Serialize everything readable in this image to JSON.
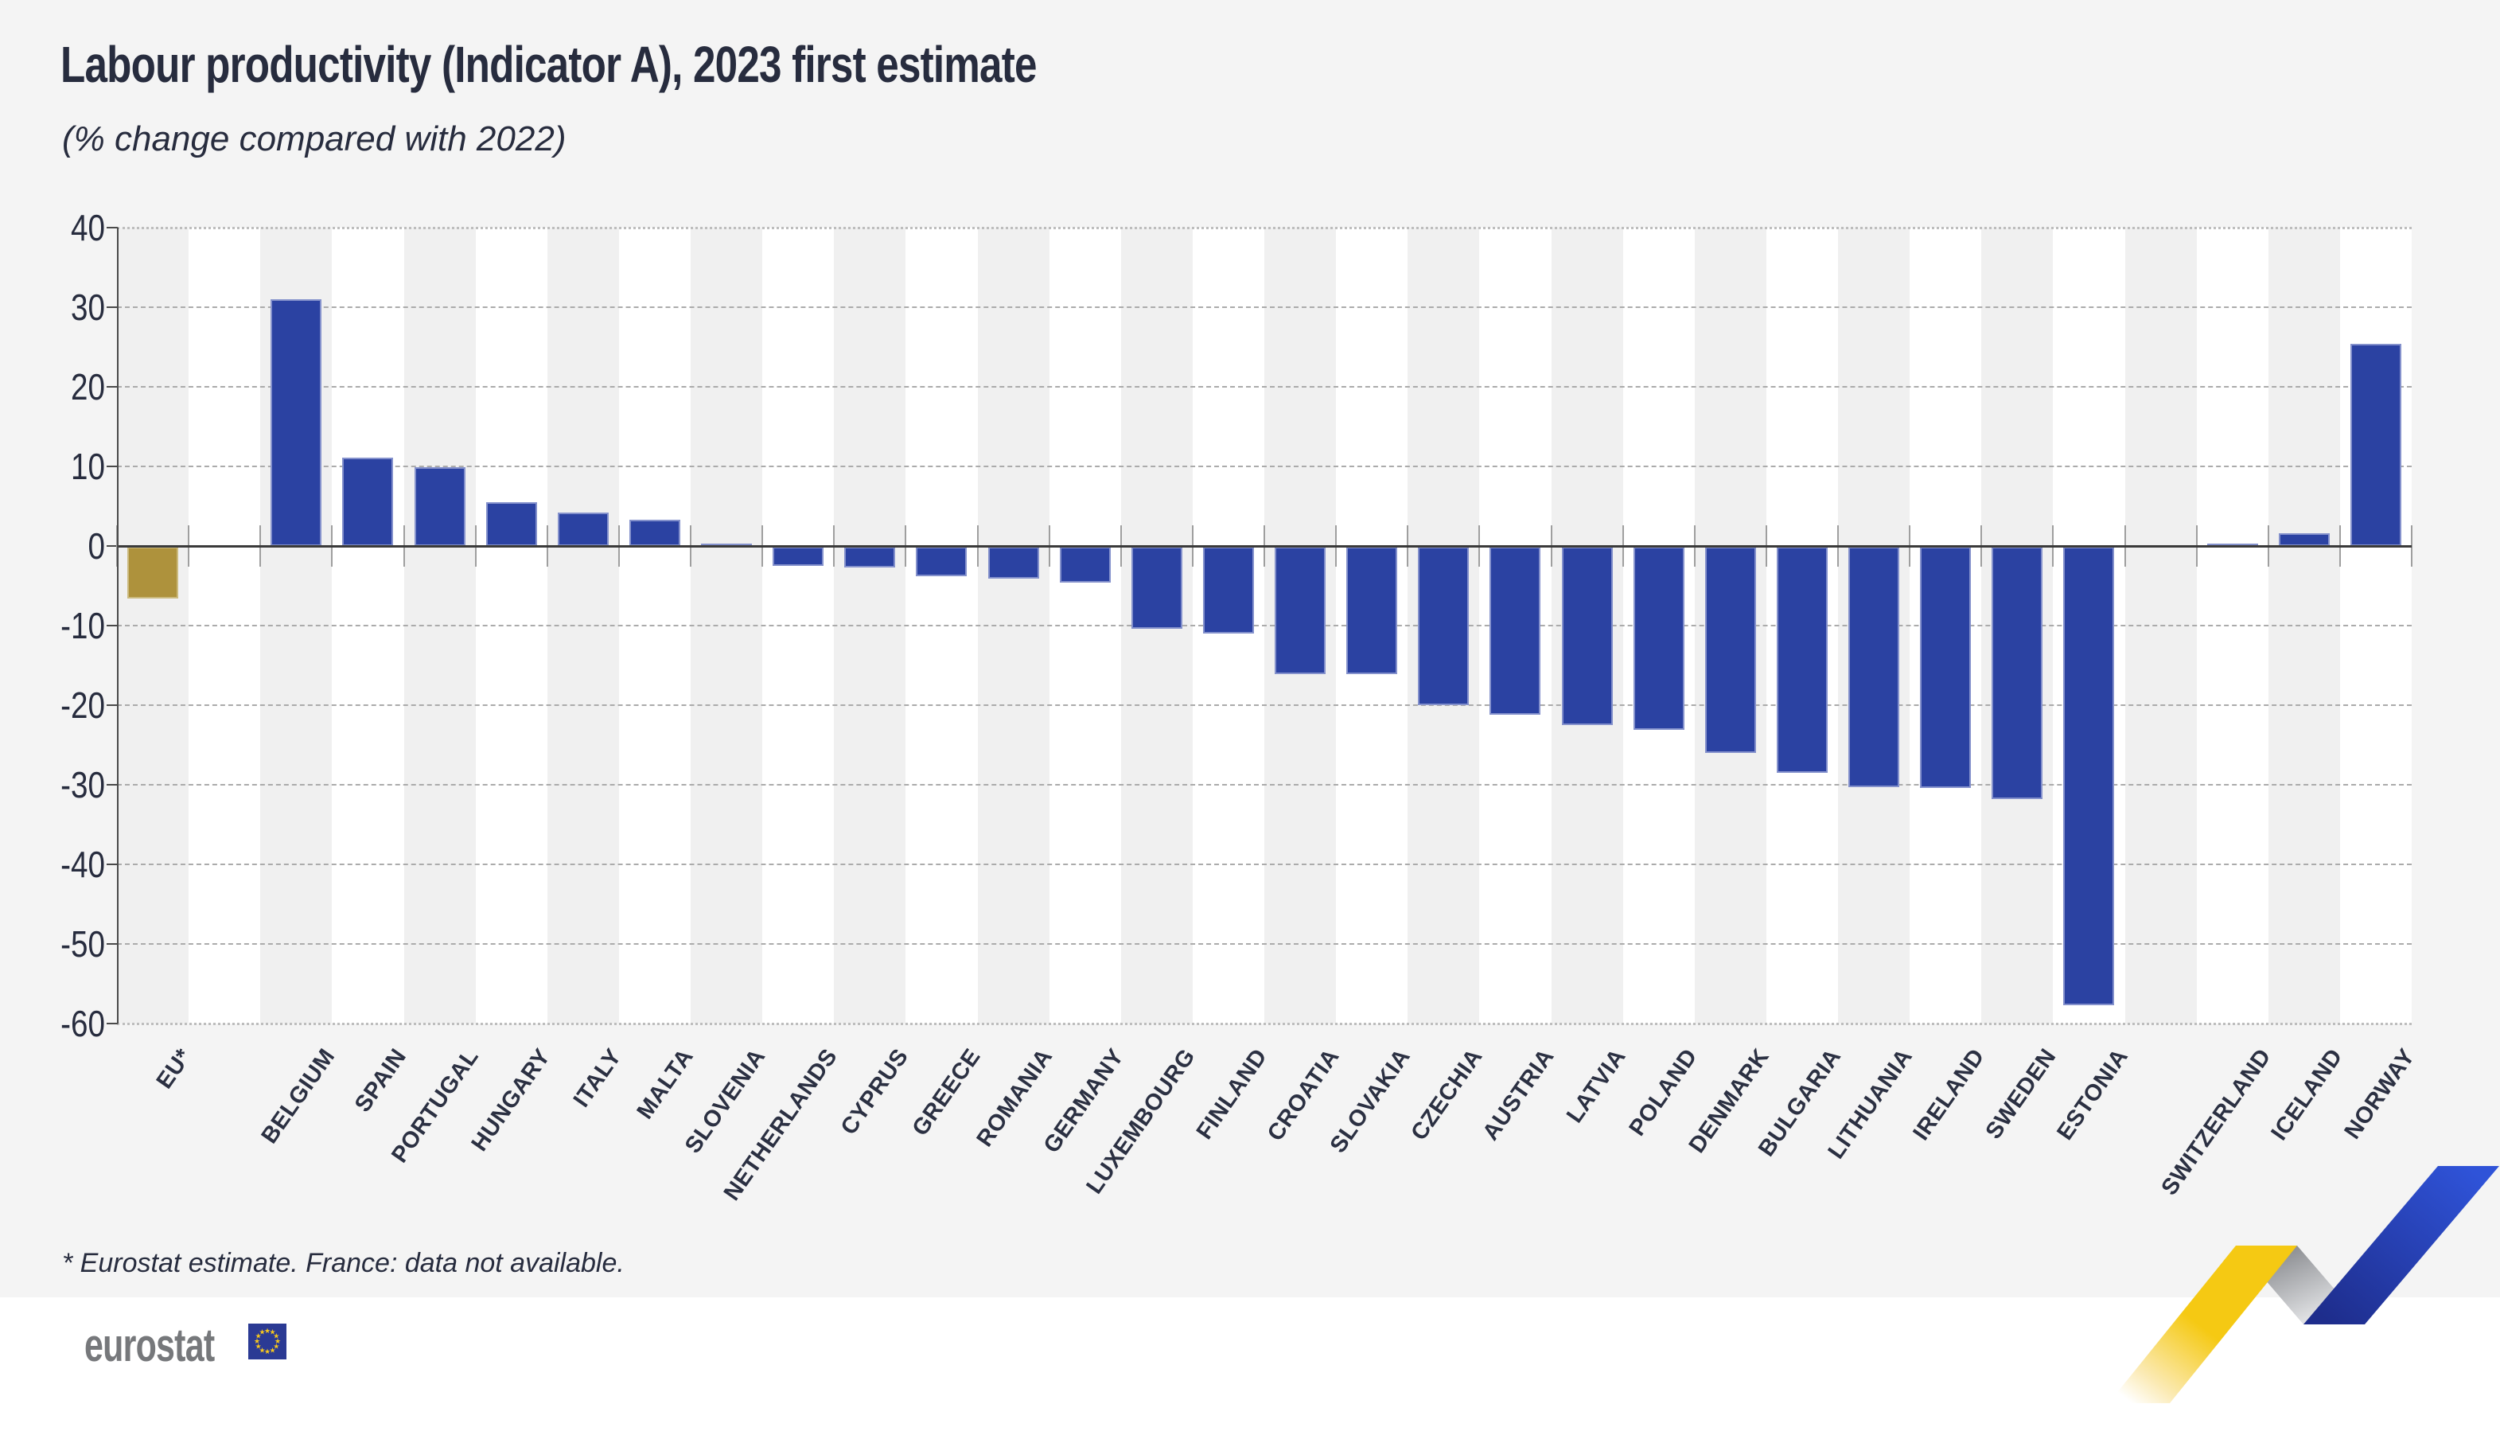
{
  "title": "Labour productivity (Indicator A), 2023 first estimate",
  "subtitle": "(% change compared with 2022)",
  "footnote": "* Eurostat estimate.  France: data not available.",
  "logo": {
    "text": "eurostat",
    "flag_blue": "#2b3a94",
    "star_yellow": "#f8c81c",
    "text_gray": "#76787b"
  },
  "chart_data": {
    "type": "bar",
    "title": "Labour productivity (Indicator A), 2023 first estimate",
    "subtitle": "(% change compared with 2022)",
    "ylabel": "% change compared with 2022",
    "ylim": [
      -60,
      40
    ],
    "ytick_step": 10,
    "grid": "horizontal-dashed, dotted top and bottom edge, solid zero line",
    "legend": "none",
    "colors": {
      "bar_default": "#2b42a2",
      "bar_eu": "#ae923c",
      "stripe_gray": "#f0f0f0",
      "stripe_white": "#ffffff",
      "background": "#f4f4f4",
      "text": "#272c3e"
    },
    "groups": [
      {
        "name": "eu-aggregate",
        "bars": [
          {
            "label": "EU*",
            "value": -6.5,
            "color_key": "bar_eu"
          }
        ]
      },
      {
        "name": "eu-members",
        "bars": [
          {
            "label": "BELGIUM",
            "value": 31.0
          },
          {
            "label": "SPAIN",
            "value": 11.1
          },
          {
            "label": "PORTUGAL",
            "value": 9.9
          },
          {
            "label": "HUNGARY",
            "value": 5.5
          },
          {
            "label": "ITALY",
            "value": 4.2
          },
          {
            "label": "MALTA",
            "value": 3.3
          },
          {
            "label": "SLOVENIA",
            "value": 0.3
          },
          {
            "label": "NETHERLANDS",
            "value": -2.4
          },
          {
            "label": "CYPRUS",
            "value": -2.6
          },
          {
            "label": "GREECE",
            "value": -3.7
          },
          {
            "label": "ROMANIA",
            "value": -4.0
          },
          {
            "label": "GERMANY",
            "value": -4.5
          },
          {
            "label": "LUXEMBOURG",
            "value": -10.3
          },
          {
            "label": "FINLAND",
            "value": -10.9
          },
          {
            "label": "CROATIA",
            "value": -16.0
          },
          {
            "label": "SLOVAKIA",
            "value": -16.0
          },
          {
            "label": "CZECHIA",
            "value": -19.9
          },
          {
            "label": "AUSTRIA",
            "value": -21.1
          },
          {
            "label": "LATVIA",
            "value": -22.4
          },
          {
            "label": "POLAND",
            "value": -23.0
          },
          {
            "label": "DENMARK",
            "value": -25.9
          },
          {
            "label": "BULGARIA",
            "value": -28.4
          },
          {
            "label": "LITHUANIA",
            "value": -30.2
          },
          {
            "label": "IRELAND",
            "value": -30.3
          },
          {
            "label": "SWEDEN",
            "value": -31.7
          },
          {
            "label": "ESTONIA",
            "value": -57.6
          }
        ]
      },
      {
        "name": "efta",
        "bars": [
          {
            "label": "SWITZERLAND",
            "value": 0.3
          },
          {
            "label": "ICELAND",
            "value": 1.6
          },
          {
            "label": "NORWAY",
            "value": 25.4
          }
        ]
      }
    ]
  }
}
